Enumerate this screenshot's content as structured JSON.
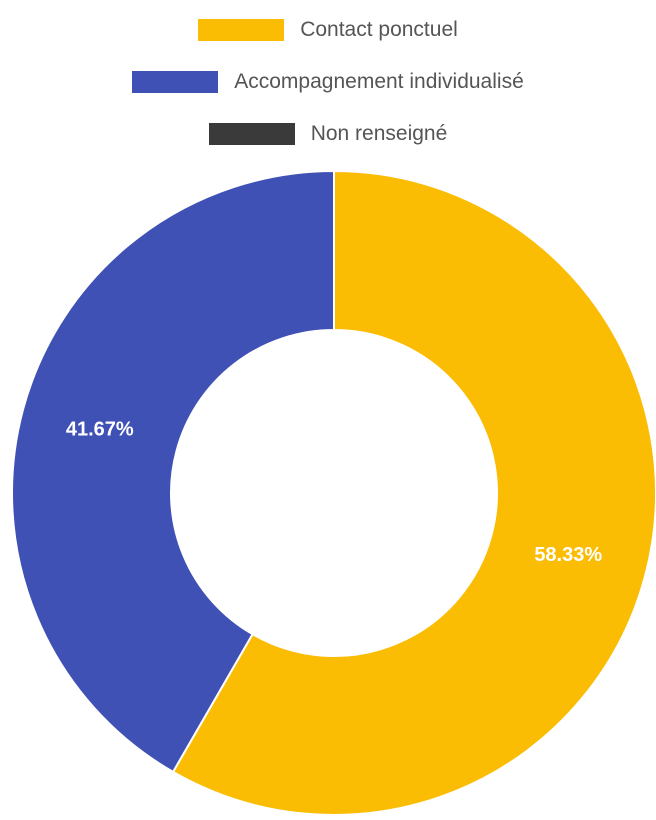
{
  "chart_data": {
    "type": "pie",
    "categories": [
      "Contact ponctuel",
      "Accompagnement individualisé",
      "Non renseigné"
    ],
    "values": [
      58.33,
      41.67,
      0
    ],
    "value_labels": [
      "58.33%",
      "41.67%",
      null
    ],
    "colors": [
      "#fbbc04",
      "#3f51b5",
      "#3a3a3a"
    ],
    "legend": "top"
  }
}
